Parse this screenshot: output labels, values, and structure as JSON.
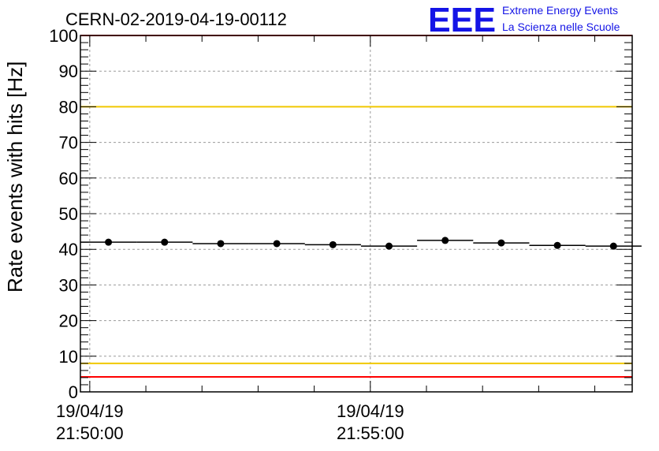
{
  "chart_data": {
    "type": "scatter",
    "title": "CERN-02-2019-04-19-00112",
    "ylabel": "Rate events with hits [Hz]",
    "xlabel": "",
    "ylim": [
      0,
      100
    ],
    "yticks": [
      "0",
      "10",
      "20",
      "30",
      "40",
      "50",
      "60",
      "70",
      "80",
      "90",
      "100"
    ],
    "xticks": [
      {
        "date": "19/04/19",
        "time": "21:50:00"
      },
      {
        "date": "19/04/19",
        "time": "21:55:00"
      }
    ],
    "x_unit": "minutes",
    "xlim": [
      "21:49:50",
      "21:59:40"
    ],
    "grid": true,
    "series": [
      {
        "x": [
          "21:50:20",
          "21:51:20",
          "21:52:20",
          "21:53:20",
          "21:54:20",
          "21:55:20",
          "21:56:20",
          "21:57:20",
          "21:58:20",
          "21:59:20"
        ],
        "bin_width_seconds": 60,
        "values": [
          42.0,
          42.0,
          41.6,
          41.6,
          41.3,
          40.9,
          42.5,
          41.8,
          41.1,
          40.9
        ]
      }
    ],
    "reference_lines": [
      {
        "y": 4.2,
        "color": "#ff0000"
      },
      {
        "y": 8.0,
        "color": "#f0c800"
      },
      {
        "y": 80.0,
        "color": "#f0c800"
      },
      {
        "y": 100.0,
        "color": "#ff0000"
      }
    ]
  },
  "logo": {
    "mark": "EEE",
    "line1": "Extreme Energy Events",
    "line2": "La Scienza nelle Scuole"
  }
}
